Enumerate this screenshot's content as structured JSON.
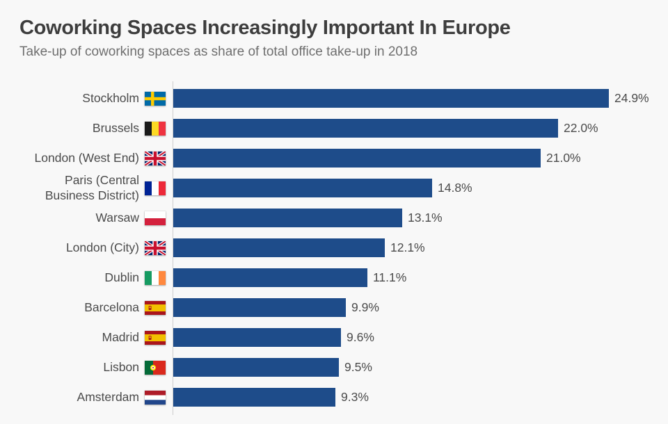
{
  "header": {
    "title": "Coworking Spaces Increasingly Important In Europe",
    "subtitle": "Take-up of coworking spaces as share of total office take-up in 2018"
  },
  "chart_data": {
    "type": "bar",
    "orientation": "horizontal",
    "title": "Coworking Spaces Increasingly Important In Europe",
    "subtitle": "Take-up of coworking spaces as share of total office take-up in 2018",
    "unit": "%",
    "xlim": [
      0,
      25
    ],
    "grid": false,
    "legend": "none",
    "categories": [
      "Stockholm",
      "Brussels",
      "London (West End)",
      "Paris (Central Business District)",
      "Warsaw",
      "London (City)",
      "Dublin",
      "Barcelona",
      "Madrid",
      "Lisbon",
      "Amsterdam"
    ],
    "values": [
      24.9,
      22.0,
      21.0,
      14.8,
      13.1,
      12.1,
      11.1,
      9.9,
      9.6,
      9.5,
      9.3
    ],
    "value_labels": [
      "24.9%",
      "22.0%",
      "21.0%",
      "14.8%",
      "13.1%",
      "12.1%",
      "11.1%",
      "9.9%",
      "9.6%",
      "9.5%",
      "9.3%"
    ],
    "flags": [
      "sweden",
      "belgium",
      "united-kingdom",
      "france",
      "poland",
      "united-kingdom",
      "ireland",
      "spain",
      "spain",
      "portugal",
      "netherlands"
    ]
  },
  "colors": {
    "background": "#f8f8f8",
    "bar": "#1e4c8a",
    "title": "#3d3d3d",
    "subtitle": "#6f6f6f",
    "label": "#4b4b4b",
    "axis": "#cccccc"
  }
}
